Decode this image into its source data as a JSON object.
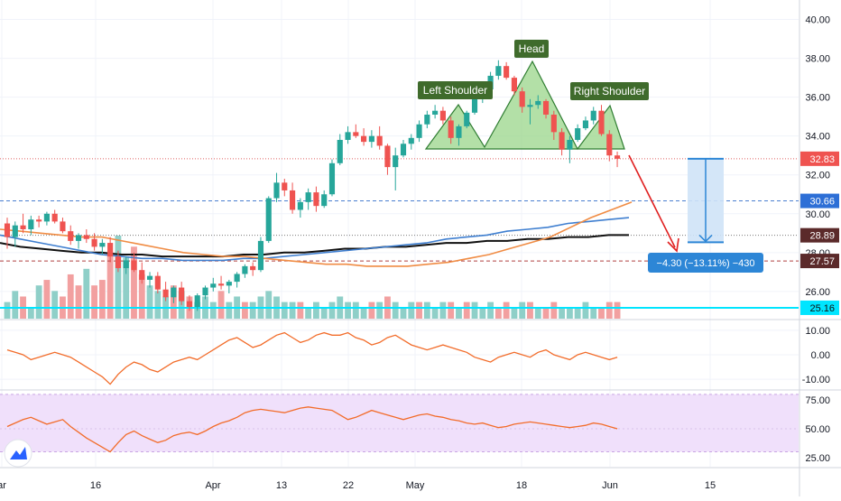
{
  "colors": {
    "up": "#26a69a",
    "down": "#ef5350",
    "vol_up": "#8fcfc8",
    "vol_down": "#f2a0a0",
    "ma_short": "#f08c44",
    "ma_mid": "#3f7fd0",
    "ma_long": "#111111",
    "pattern_fill": "#9ad58a",
    "pattern_line": "#2f7d32",
    "label_bg": "#3f6b2c",
    "projection_fill": "#cfe3f7",
    "projection_line": "#2d86d6",
    "arrow": "#e02020",
    "hline_price": "#e06060",
    "hline_level": "#4a7fd0",
    "hline_support": "#00e5ff",
    "rsi_band": "#f0e0fb",
    "osc_line": "#f26c2a",
    "grid": "#f0f3fa",
    "axis_text": "#131722"
  },
  "pattern_labels": {
    "left": "Left Shoulder",
    "head": "Head",
    "right": "Right Shoulder"
  },
  "measure_label": "−4.30 (−13.11%) −430",
  "logo_icon": "tradingview-logo-icon",
  "chart_data": {
    "type": "candlestick",
    "x_tick_labels": [
      "ar",
      "16",
      "Apr",
      "13",
      "22",
      "May",
      "18",
      "Jun",
      "15"
    ],
    "price_axis": {
      "ticks": [
        "40.00",
        "38.00",
        "36.00",
        "34.00",
        "32.00",
        "30.00",
        "28.00",
        "26.00"
      ],
      "ylim": [
        24.6,
        41.0
      ]
    },
    "price_tags": [
      {
        "text": "32.83",
        "style": "red",
        "value": 32.83
      },
      {
        "text": "30.66",
        "style": "blue",
        "value": 30.66
      },
      {
        "text": "28.89",
        "style": "dark",
        "value": 28.89
      },
      {
        "text": "27.57",
        "style": "dark",
        "value": 27.57
      },
      {
        "text": "25.16",
        "style": "cyan",
        "value": 25.16
      }
    ],
    "horizontal_lines": [
      {
        "value": 32.83,
        "style": "dotted-red"
      },
      {
        "value": 30.66,
        "style": "dashed-blue"
      },
      {
        "value": 28.89,
        "style": "dotted-gray"
      },
      {
        "value": 27.57,
        "style": "dashed-darkred"
      },
      {
        "value": 25.16,
        "style": "solid-cyan"
      }
    ],
    "candles": [
      [
        29.5,
        29.8,
        28.2,
        28.8
      ],
      [
        28.8,
        29.6,
        28.3,
        29.4
      ],
      [
        29.4,
        30.0,
        29.0,
        29.2
      ],
      [
        29.2,
        29.9,
        28.9,
        29.7
      ],
      [
        29.7,
        29.9,
        29.3,
        29.6
      ],
      [
        29.6,
        30.1,
        29.4,
        30.0
      ],
      [
        30.0,
        30.2,
        29.5,
        29.6
      ],
      [
        29.6,
        29.8,
        29.0,
        29.1
      ],
      [
        29.1,
        29.4,
        28.4,
        28.6
      ],
      [
        28.6,
        29.0,
        28.2,
        28.9
      ],
      [
        28.9,
        29.2,
        28.5,
        28.7
      ],
      [
        28.7,
        29.0,
        28.1,
        28.3
      ],
      [
        28.3,
        28.7,
        27.9,
        28.5
      ],
      [
        28.5,
        28.8,
        27.5,
        27.8
      ],
      [
        27.8,
        28.1,
        27.0,
        27.2
      ],
      [
        27.2,
        27.8,
        26.9,
        27.6
      ],
      [
        27.6,
        28.0,
        27.0,
        27.1
      ],
      [
        27.1,
        27.5,
        26.4,
        26.6
      ],
      [
        26.6,
        27.0,
        26.2,
        26.8
      ],
      [
        26.8,
        27.0,
        25.9,
        26.1
      ],
      [
        26.1,
        26.5,
        25.5,
        25.7
      ],
      [
        25.7,
        26.3,
        25.4,
        26.2
      ],
      [
        26.2,
        26.5,
        25.3,
        25.5
      ],
      [
        25.5,
        25.8,
        25.0,
        25.2
      ],
      [
        25.2,
        25.9,
        25.0,
        25.8
      ],
      [
        25.8,
        26.3,
        25.6,
        26.2
      ],
      [
        26.2,
        26.7,
        26.0,
        26.4
      ],
      [
        26.4,
        26.8,
        26.1,
        26.3
      ],
      [
        26.3,
        26.6,
        25.9,
        26.5
      ],
      [
        26.5,
        27.0,
        26.2,
        26.9
      ],
      [
        26.9,
        27.4,
        26.7,
        27.3
      ],
      [
        27.3,
        27.5,
        26.8,
        27.1
      ],
      [
        27.1,
        28.8,
        27.0,
        28.6
      ],
      [
        28.6,
        30.9,
        28.5,
        30.8
      ],
      [
        30.8,
        32.1,
        30.6,
        31.6
      ],
      [
        31.6,
        31.8,
        30.9,
        31.2
      ],
      [
        31.2,
        31.6,
        30.0,
        30.2
      ],
      [
        30.2,
        30.8,
        29.8,
        30.6
      ],
      [
        30.6,
        31.3,
        30.2,
        31.1
      ],
      [
        31.1,
        31.4,
        30.1,
        30.4
      ],
      [
        30.4,
        31.2,
        30.3,
        31.0
      ],
      [
        31.0,
        32.8,
        30.9,
        32.6
      ],
      [
        32.6,
        34.1,
        32.5,
        33.8
      ],
      [
        33.8,
        34.5,
        33.6,
        34.2
      ],
      [
        34.2,
        34.6,
        33.9,
        34.0
      ],
      [
        34.0,
        34.4,
        33.5,
        33.7
      ],
      [
        33.7,
        34.3,
        33.4,
        34.0
      ],
      [
        34.0,
        34.5,
        33.3,
        33.5
      ],
      [
        33.5,
        33.6,
        32.0,
        32.4
      ],
      [
        32.4,
        33.4,
        31.2,
        33.0
      ],
      [
        33.0,
        33.8,
        32.9,
        33.6
      ],
      [
        33.6,
        34.1,
        33.3,
        33.9
      ],
      [
        33.9,
        34.8,
        33.7,
        34.6
      ],
      [
        34.6,
        35.3,
        34.4,
        35.1
      ],
      [
        35.1,
        35.6,
        34.9,
        35.3
      ],
      [
        35.3,
        35.5,
        34.6,
        34.8
      ],
      [
        34.8,
        35.0,
        33.6,
        33.9
      ],
      [
        33.9,
        34.6,
        33.5,
        34.5
      ],
      [
        34.5,
        35.3,
        34.4,
        35.2
      ],
      [
        35.2,
        36.1,
        35.1,
        35.9
      ],
      [
        35.9,
        36.5,
        35.7,
        36.4
      ],
      [
        36.4,
        37.3,
        36.2,
        37.1
      ],
      [
        37.1,
        37.9,
        36.9,
        37.6
      ],
      [
        37.6,
        37.8,
        36.9,
        37.0
      ],
      [
        37.0,
        37.1,
        36.1,
        36.3
      ],
      [
        36.3,
        36.5,
        35.2,
        35.5
      ],
      [
        35.5,
        35.9,
        34.6,
        35.6
      ],
      [
        35.6,
        36.1,
        35.4,
        35.8
      ],
      [
        35.8,
        35.9,
        34.9,
        35.1
      ],
      [
        35.1,
        35.3,
        33.8,
        34.2
      ],
      [
        34.2,
        34.4,
        33.0,
        33.3
      ],
      [
        33.3,
        34.0,
        32.6,
        33.8
      ],
      [
        33.8,
        34.6,
        33.7,
        34.4
      ],
      [
        34.4,
        35.0,
        34.3,
        34.8
      ],
      [
        34.8,
        35.5,
        34.6,
        35.3
      ],
      [
        35.3,
        35.6,
        34.0,
        34.1
      ],
      [
        34.1,
        34.3,
        32.7,
        33.0
      ],
      [
        33.0,
        33.2,
        32.4,
        32.83
      ]
    ],
    "volume": [
      [
        3,
        1
      ],
      [
        5,
        1
      ],
      [
        4,
        0
      ],
      [
        2,
        1
      ],
      [
        6,
        1
      ],
      [
        7,
        0
      ],
      [
        5,
        1
      ],
      [
        4,
        0
      ],
      [
        8,
        0
      ],
      [
        6,
        0
      ],
      [
        9,
        1
      ],
      [
        6,
        0
      ],
      [
        7,
        0
      ],
      [
        12,
        0
      ],
      [
        15,
        1
      ],
      [
        11,
        1
      ],
      [
        13,
        0
      ],
      [
        8,
        0
      ],
      [
        6,
        1
      ],
      [
        5,
        1
      ],
      [
        4,
        1
      ],
      [
        6,
        0
      ],
      [
        5,
        1
      ],
      [
        4,
        0
      ],
      [
        3,
        1
      ],
      [
        4,
        1
      ],
      [
        3,
        1
      ],
      [
        5,
        0
      ],
      [
        3,
        1
      ],
      [
        4,
        1
      ],
      [
        3,
        0
      ],
      [
        3,
        1
      ],
      [
        4,
        1
      ],
      [
        5,
        1
      ],
      [
        4,
        1
      ],
      [
        3,
        1
      ],
      [
        3,
        1
      ],
      [
        3,
        0
      ],
      [
        2,
        1
      ],
      [
        3,
        1
      ],
      [
        2,
        1
      ],
      [
        3,
        1
      ],
      [
        4,
        1
      ],
      [
        3,
        1
      ],
      [
        3,
        1
      ],
      [
        2,
        1
      ],
      [
        3,
        0
      ],
      [
        3,
        1
      ],
      [
        4,
        0
      ],
      [
        3,
        1
      ],
      [
        2,
        1
      ],
      [
        3,
        1
      ],
      [
        3,
        0
      ],
      [
        3,
        1
      ],
      [
        2,
        1
      ],
      [
        3,
        1
      ],
      [
        3,
        0
      ],
      [
        2,
        1
      ],
      [
        3,
        0
      ],
      [
        3,
        1
      ],
      [
        2,
        1
      ],
      [
        3,
        1
      ],
      [
        2,
        0
      ],
      [
        3,
        0
      ],
      [
        2,
        1
      ],
      [
        3,
        1
      ],
      [
        3,
        0
      ],
      [
        2,
        1
      ],
      [
        2,
        0
      ],
      [
        3,
        0
      ],
      [
        2,
        1
      ],
      [
        2,
        1
      ],
      [
        2,
        1
      ],
      [
        3,
        1
      ],
      [
        2,
        1
      ],
      [
        2,
        0
      ],
      [
        3,
        0
      ],
      [
        3,
        0
      ]
    ],
    "ma_short": [
      29.2,
      29.1,
      29.0,
      28.9,
      28.8,
      28.8,
      28.6,
      28.4,
      28.2,
      28.0,
      27.9,
      27.8,
      27.8,
      27.7,
      27.6,
      27.5,
      27.4,
      27.4,
      27.3,
      27.3,
      27.3,
      27.4,
      27.5,
      27.7,
      27.9,
      28.2,
      28.5,
      28.8,
      29.3,
      29.8,
      30.2,
      30.6
    ],
    "ma_mid": [
      28.9,
      28.7,
      28.5,
      28.3,
      28.1,
      27.9,
      27.8,
      27.7,
      27.7,
      27.6,
      27.6,
      27.6,
      27.7,
      27.7,
      27.8,
      27.9,
      28.0,
      28.1,
      28.2,
      28.3,
      28.4,
      28.5,
      28.7,
      28.8,
      28.9,
      29.1,
      29.2,
      29.3,
      29.5,
      29.6,
      29.7,
      29.8
    ],
    "ma_long": [
      28.5,
      28.3,
      28.2,
      28.1,
      28.0,
      28.0,
      27.9,
      27.9,
      27.8,
      27.8,
      27.8,
      27.8,
      27.9,
      27.9,
      28.0,
      28.0,
      28.1,
      28.2,
      28.2,
      28.3,
      28.3,
      28.4,
      28.5,
      28.5,
      28.6,
      28.6,
      28.7,
      28.7,
      28.8,
      28.8,
      28.9,
      28.9
    ],
    "momentum_panel": {
      "ticks": [
        "10.00",
        "0.00",
        "-10.00"
      ],
      "ylim": [
        -14,
        14
      ],
      "values": [
        2,
        1,
        0,
        -2,
        -1,
        0,
        1,
        0,
        -1,
        -3,
        -5,
        -7,
        -9,
        -12,
        -8,
        -5,
        -3,
        -4,
        -6,
        -7,
        -5,
        -3,
        -2,
        -1,
        -2,
        0,
        2,
        4,
        6,
        7,
        5,
        3,
        4,
        6,
        8,
        9,
        7,
        5,
        6,
        8,
        9,
        8,
        8,
        9,
        7,
        6,
        4,
        5,
        7,
        8,
        6,
        4,
        3,
        2,
        3,
        4,
        3,
        2,
        1,
        -1,
        -2,
        -3,
        -1,
        0,
        1,
        0,
        -1,
        1,
        2,
        0,
        -1,
        -2,
        0,
        1,
        0,
        -1,
        -2,
        -1
      ]
    },
    "rsi_panel": {
      "ticks": [
        "75.00",
        "50.00",
        "25.00"
      ],
      "ylim": [
        17,
        83
      ],
      "band": [
        30,
        80
      ],
      "values": [
        52,
        55,
        58,
        60,
        57,
        54,
        56,
        58,
        52,
        47,
        42,
        38,
        34,
        30,
        38,
        45,
        48,
        44,
        41,
        38,
        40,
        44,
        46,
        47,
        45,
        48,
        52,
        55,
        57,
        60,
        64,
        66,
        67,
        66,
        65,
        64,
        66,
        68,
        69,
        68,
        67,
        66,
        62,
        58,
        60,
        63,
        66,
        64,
        62,
        60,
        58,
        60,
        62,
        63,
        61,
        60,
        58,
        57,
        55,
        54,
        55,
        53,
        51,
        52,
        54,
        55,
        56,
        55,
        54,
        53,
        52,
        51,
        52,
        53,
        55,
        54,
        52,
        50
      ]
    }
  }
}
